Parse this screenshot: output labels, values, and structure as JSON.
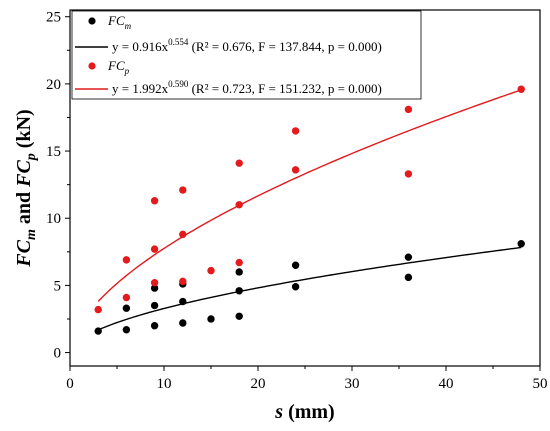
{
  "chart_data": {
    "type": "scatter",
    "xlabel": {
      "main": "s",
      "rest": " (mm)"
    },
    "ylabel": {
      "p1": "FC",
      "s1": "m",
      "p2": " and ",
      "p3": "FC",
      "s2": "p",
      "p4": " (kN)"
    },
    "xlim": [
      0,
      50
    ],
    "ylim": [
      -1,
      25.5
    ],
    "xticks": [
      0,
      10,
      20,
      30,
      40,
      50
    ],
    "yticks": [
      0,
      5,
      10,
      15,
      20,
      25
    ],
    "grid": false,
    "legend_position": "top-left",
    "series": [
      {
        "name": "FCm",
        "label_main": "FC",
        "label_sub": "m",
        "color": "#000000",
        "points": [
          [
            3,
            1.6
          ],
          [
            6,
            1.7
          ],
          [
            6,
            3.3
          ],
          [
            9,
            2.0
          ],
          [
            9,
            3.5
          ],
          [
            9,
            4.8
          ],
          [
            12,
            2.2
          ],
          [
            12,
            3.8
          ],
          [
            12,
            5.1
          ],
          [
            15,
            2.5
          ],
          [
            18,
            2.7
          ],
          [
            18,
            4.6
          ],
          [
            18,
            6.0
          ],
          [
            24,
            4.9
          ],
          [
            24,
            6.5
          ],
          [
            36,
            5.6
          ],
          [
            36,
            7.1
          ],
          [
            48,
            8.1
          ]
        ]
      },
      {
        "name": "FCp",
        "label_main": "FC",
        "label_sub": "p",
        "color": "#e41a1c",
        "points": [
          [
            3,
            3.2
          ],
          [
            6,
            4.1
          ],
          [
            6,
            6.9
          ],
          [
            9,
            5.2
          ],
          [
            9,
            7.7
          ],
          [
            9,
            11.3
          ],
          [
            12,
            5.3
          ],
          [
            12,
            8.8
          ],
          [
            12,
            12.1
          ],
          [
            15,
            6.1
          ],
          [
            18,
            6.7
          ],
          [
            18,
            11.0
          ],
          [
            18,
            14.1
          ],
          [
            24,
            13.6
          ],
          [
            24,
            16.5
          ],
          [
            36,
            13.3
          ],
          [
            36,
            18.1
          ],
          [
            48,
            19.6
          ]
        ]
      }
    ],
    "fits": [
      {
        "series": "FCm",
        "a": 0.916,
        "b": 0.554,
        "x_range": [
          3,
          48
        ],
        "color": "#000000",
        "eq_prefix": "y = 0.916x",
        "eq_exp": "0.554",
        "eq_stats": " (R² = 0.676, F = 137.844, p = 0.000)"
      },
      {
        "series": "FCp",
        "a": 1.992,
        "b": 0.59,
        "x_range": [
          3,
          48
        ],
        "color": "#e41a1c",
        "eq_prefix": "y = 1.992x",
        "eq_exp": "0.590",
        "eq_stats": " (R² = 0.723, F = 151.232, p = 0.000)"
      }
    ]
  }
}
